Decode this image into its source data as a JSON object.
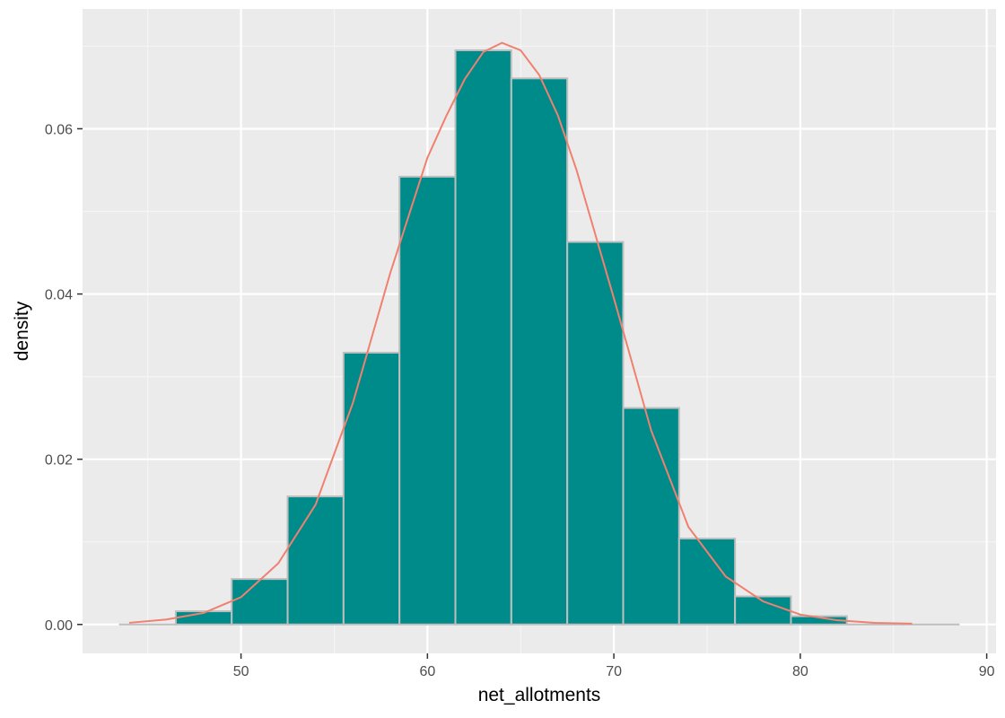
{
  "chart_data": {
    "type": "bar",
    "title": "",
    "xlabel": "net_allotments",
    "ylabel": "density",
    "xlim": [
      41.5,
      90.5
    ],
    "ylim": [
      -0.0035,
      0.0745
    ],
    "x_ticks": [
      50,
      60,
      70,
      80,
      90
    ],
    "x_tick_labels": [
      "50",
      "60",
      "70",
      "80",
      "90"
    ],
    "y_ticks": [
      0.0,
      0.02,
      0.04,
      0.06
    ],
    "y_tick_labels": [
      "0.00",
      "0.02",
      "0.04",
      "0.06"
    ],
    "grid": true,
    "legend": "none",
    "bins": [
      {
        "x0": 43.5,
        "x1": 46.5,
        "density": 0.0
      },
      {
        "x0": 46.5,
        "x1": 49.5,
        "density": 0.0016
      },
      {
        "x0": 49.5,
        "x1": 52.5,
        "density": 0.0055
      },
      {
        "x0": 52.5,
        "x1": 55.5,
        "density": 0.0155
      },
      {
        "x0": 55.5,
        "x1": 58.5,
        "density": 0.0329
      },
      {
        "x0": 58.5,
        "x1": 61.5,
        "density": 0.0542
      },
      {
        "x0": 61.5,
        "x1": 64.5,
        "density": 0.0695
      },
      {
        "x0": 64.5,
        "x1": 67.5,
        "density": 0.0661
      },
      {
        "x0": 67.5,
        "x1": 70.5,
        "density": 0.0463
      },
      {
        "x0": 70.5,
        "x1": 73.5,
        "density": 0.0262
      },
      {
        "x0": 73.5,
        "x1": 76.5,
        "density": 0.0104
      },
      {
        "x0": 76.5,
        "x1": 79.5,
        "density": 0.0034
      },
      {
        "x0": 79.5,
        "x1": 82.5,
        "density": 0.001
      },
      {
        "x0": 82.5,
        "x1": 85.5,
        "density": 0.0
      },
      {
        "x0": 85.5,
        "x1": 88.5,
        "density": 0.0
      }
    ],
    "density_curve": {
      "x": [
        44,
        46,
        48,
        50,
        52,
        54,
        56,
        58,
        60,
        61,
        62,
        63,
        64,
        65,
        66,
        67,
        68,
        70,
        72,
        74,
        76,
        78,
        80,
        82,
        84,
        86
      ],
      "y": [
        0.0002,
        0.0006,
        0.0014,
        0.0033,
        0.0074,
        0.0145,
        0.0268,
        0.0425,
        0.0565,
        0.0615,
        0.066,
        0.0693,
        0.0704,
        0.0695,
        0.0665,
        0.0616,
        0.055,
        0.0395,
        0.0235,
        0.0118,
        0.0058,
        0.0028,
        0.0012,
        0.0005,
        0.0002,
        0.0001
      ]
    },
    "colors": {
      "bar_fill": "#008b8b",
      "bar_outline": "#bebebe",
      "curve": "#f08070",
      "panel": "#ebebeb",
      "grid_major": "#ffffff",
      "grid_minor": "#f5f5f5"
    }
  }
}
